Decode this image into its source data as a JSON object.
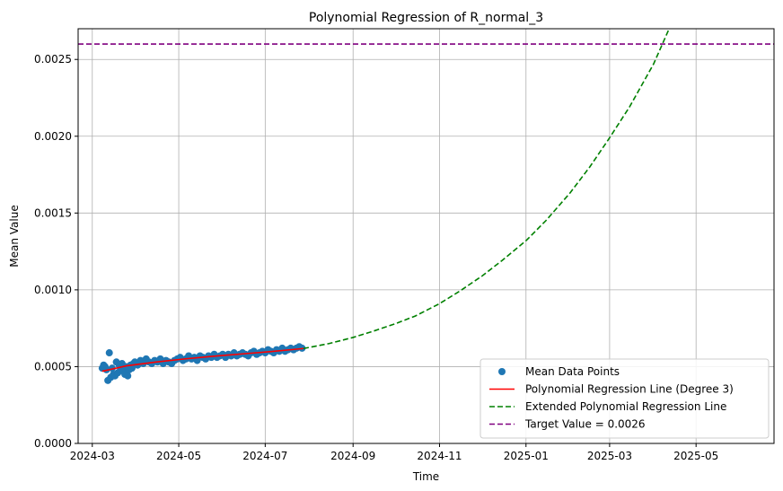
{
  "chart_data": {
    "type": "scatter",
    "title": "Polynomial Regression of R_normal_3",
    "xlabel": "Time",
    "ylabel": "Mean Value",
    "x_is_date": true,
    "xlim": [
      "2024-02-20",
      "2025-06-25"
    ],
    "ylim": [
      0,
      0.0027
    ],
    "x_ticks": [
      "2024-03",
      "2024-05",
      "2024-07",
      "2024-09",
      "2024-11",
      "2025-01",
      "2025-03",
      "2025-05"
    ],
    "y_ticks": [
      0,
      0.0005,
      0.001,
      0.0015,
      0.002,
      0.0025
    ],
    "y_tick_labels": [
      "0.0000",
      "0.0005",
      "0.0010",
      "0.0015",
      "0.0020",
      "0.0025"
    ],
    "grid": true,
    "legend_position": "lower-right",
    "series": [
      {
        "name": "Mean Data Points",
        "kind": "scatter",
        "color": "#1f77b4",
        "x": [
          "2024-03-08",
          "2024-03-09",
          "2024-03-10",
          "2024-03-11",
          "2024-03-12",
          "2024-03-13",
          "2024-03-14",
          "2024-03-15",
          "2024-03-16",
          "2024-03-17",
          "2024-03-18",
          "2024-03-19",
          "2024-03-20",
          "2024-03-21",
          "2024-03-22",
          "2024-03-23",
          "2024-03-24",
          "2024-03-25",
          "2024-03-26",
          "2024-03-27",
          "2024-03-28",
          "2024-03-29",
          "2024-03-30",
          "2024-03-31",
          "2024-04-02",
          "2024-04-04",
          "2024-04-06",
          "2024-04-08",
          "2024-04-10",
          "2024-04-12",
          "2024-04-14",
          "2024-04-16",
          "2024-04-18",
          "2024-04-20",
          "2024-04-22",
          "2024-04-24",
          "2024-04-26",
          "2024-04-28",
          "2024-04-30",
          "2024-05-02",
          "2024-05-04",
          "2024-05-06",
          "2024-05-08",
          "2024-05-10",
          "2024-05-12",
          "2024-05-14",
          "2024-05-16",
          "2024-05-18",
          "2024-05-20",
          "2024-05-22",
          "2024-05-24",
          "2024-05-26",
          "2024-05-28",
          "2024-05-30",
          "2024-06-01",
          "2024-06-03",
          "2024-06-05",
          "2024-06-07",
          "2024-06-09",
          "2024-06-11",
          "2024-06-13",
          "2024-06-15",
          "2024-06-17",
          "2024-06-19",
          "2024-06-21",
          "2024-06-23",
          "2024-06-25",
          "2024-06-27",
          "2024-06-29",
          "2024-07-01",
          "2024-07-03",
          "2024-07-05",
          "2024-07-07",
          "2024-07-09",
          "2024-07-11",
          "2024-07-13",
          "2024-07-15",
          "2024-07-17",
          "2024-07-19",
          "2024-07-21",
          "2024-07-23",
          "2024-07-25",
          "2024-07-27"
        ],
        "y": [
          0.00049,
          0.00051,
          0.0005,
          0.00048,
          0.00041,
          0.00059,
          0.00043,
          0.00049,
          0.00045,
          0.00044,
          0.00053,
          0.00046,
          0.00051,
          0.00048,
          0.00052,
          0.00047,
          0.00045,
          0.0005,
          0.00044,
          0.00048,
          0.00051,
          0.00049,
          0.00052,
          0.00053,
          0.00051,
          0.00054,
          0.00052,
          0.00055,
          0.00053,
          0.00052,
          0.00054,
          0.00053,
          0.00055,
          0.00052,
          0.00054,
          0.00053,
          0.00052,
          0.00054,
          0.00055,
          0.00056,
          0.00054,
          0.00055,
          0.00057,
          0.00055,
          0.00056,
          0.00054,
          0.00057,
          0.00056,
          0.00055,
          0.00057,
          0.00056,
          0.00058,
          0.00056,
          0.00057,
          0.00058,
          0.00056,
          0.00058,
          0.00057,
          0.00059,
          0.00057,
          0.00058,
          0.00059,
          0.00058,
          0.00057,
          0.00059,
          0.0006,
          0.00058,
          0.00059,
          0.0006,
          0.00059,
          0.00061,
          0.0006,
          0.00059,
          0.00061,
          0.0006,
          0.00062,
          0.0006,
          0.00061,
          0.00062,
          0.00061,
          0.00062,
          0.00063,
          0.00062
        ]
      },
      {
        "name": "Polynomial Regression Line (Degree 3)",
        "kind": "line",
        "color": "#ff0000",
        "dash": "solid",
        "x": [
          "2024-03-08",
          "2024-03-25",
          "2024-04-15",
          "2024-05-05",
          "2024-05-25",
          "2024-06-15",
          "2024-07-05",
          "2024-07-28"
        ],
        "y": [
          0.00047,
          0.000505,
          0.00053,
          0.00055,
          0.000567,
          0.000583,
          0.000598,
          0.000618
        ]
      },
      {
        "name": "Extended Polynomial Regression Line",
        "kind": "line",
        "color": "#008000",
        "dash": "dashed",
        "x": [
          "2024-07-28",
          "2024-08-15",
          "2024-09-01",
          "2024-09-15",
          "2024-10-01",
          "2024-10-15",
          "2024-11-01",
          "2024-11-15",
          "2024-12-01",
          "2024-12-15",
          "2025-01-01",
          "2025-01-15",
          "2025-02-01",
          "2025-02-15",
          "2025-03-01",
          "2025-03-15",
          "2025-04-01",
          "2025-04-12"
        ],
        "y": [
          0.000618,
          0.00065,
          0.00069,
          0.00073,
          0.00078,
          0.00083,
          0.00091,
          0.00099,
          0.00109,
          0.00119,
          0.00132,
          0.00145,
          0.00163,
          0.0018,
          0.00199,
          0.00219,
          0.00247,
          0.0027
        ]
      },
      {
        "name": "Target Value = 0.0026",
        "kind": "hline",
        "color": "#800080",
        "dash": "dashed",
        "y": 0.0026
      }
    ]
  }
}
